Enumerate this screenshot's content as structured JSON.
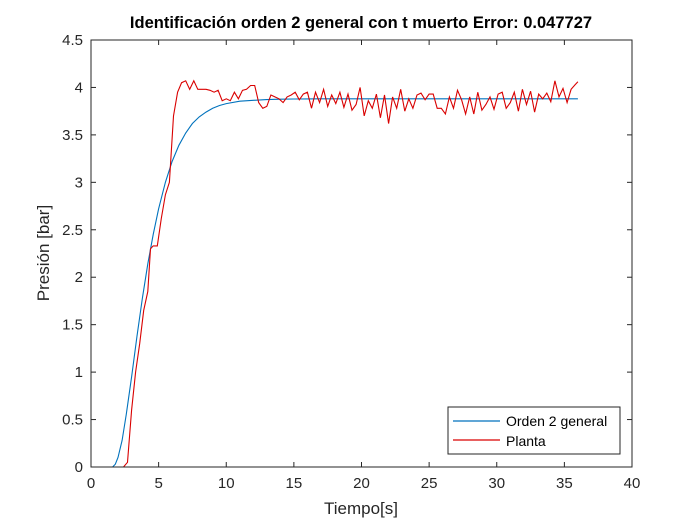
{
  "chart_data": {
    "type": "line",
    "title": "Identificación orden 2 general con t muerto Error: 0.047727",
    "xlabel": "Tiempo[s]",
    "ylabel": "Presión [bar]",
    "xlim": [
      0,
      40
    ],
    "ylim": [
      0,
      4.5
    ],
    "xticks": [
      0,
      5,
      10,
      15,
      20,
      25,
      30,
      35,
      40
    ],
    "xtick_labels": [
      "0",
      "5",
      "10",
      "15",
      "20",
      "25",
      "30",
      "35",
      "40"
    ],
    "yticks": [
      0,
      0.5,
      1,
      1.5,
      2,
      2.5,
      3,
      3.5,
      4,
      4.5
    ],
    "ytick_labels": [
      "0",
      "0.5",
      "1",
      "1.5",
      "2",
      "2.5",
      "3",
      "3.5",
      "4",
      "4.5"
    ],
    "grid": false,
    "legend_position": "bottom-right",
    "series": [
      {
        "name": "Orden 2 general",
        "color": "#0072BD",
        "x": [
          0,
          1.6,
          1.8,
          2,
          2.3,
          2.6,
          3,
          3.4,
          3.8,
          4.2,
          4.6,
          5,
          5.5,
          6,
          6.5,
          7,
          7.5,
          8,
          8.5,
          9,
          9.5,
          10,
          11,
          12,
          13,
          14,
          15,
          16,
          17,
          18,
          20,
          22,
          25,
          28,
          30,
          33,
          36
        ],
        "y": [
          0,
          0,
          0.03,
          0.1,
          0.28,
          0.55,
          0.95,
          1.38,
          1.78,
          2.14,
          2.45,
          2.72,
          3.0,
          3.22,
          3.39,
          3.52,
          3.62,
          3.69,
          3.74,
          3.78,
          3.81,
          3.83,
          3.855,
          3.865,
          3.872,
          3.876,
          3.878,
          3.879,
          3.88,
          3.88,
          3.88,
          3.88,
          3.88,
          3.88,
          3.88,
          3.88,
          3.88
        ]
      },
      {
        "name": "Planta",
        "color": "#D90000",
        "x": [
          0,
          1,
          2,
          2.4,
          2.7,
          3.0,
          3.3,
          3.6,
          3.9,
          4.2,
          4.4,
          4.6,
          4.9,
          5.2,
          5.5,
          5.8,
          6.1,
          6.4,
          6.7,
          7.0,
          7.3,
          7.6,
          7.9,
          8.2,
          8.5,
          8.8,
          9.1,
          9.4,
          9.7,
          10.0,
          10.3,
          10.6,
          10.9,
          11.2,
          11.5,
          11.8,
          12.1,
          12.4,
          12.7,
          13.0,
          13.3,
          13.6,
          13.9,
          14.2,
          14.5,
          14.8,
          15.1,
          15.4,
          15.7,
          16.0,
          16.3,
          16.6,
          16.9,
          17.2,
          17.5,
          17.8,
          18.1,
          18.4,
          18.7,
          19.0,
          19.3,
          19.6,
          19.9,
          20.2,
          20.5,
          20.8,
          21.1,
          21.4,
          21.7,
          22.0,
          22.3,
          22.6,
          22.9,
          23.2,
          23.5,
          23.8,
          24.1,
          24.4,
          24.7,
          25.0,
          25.3,
          25.6,
          25.9,
          26.2,
          26.5,
          26.8,
          27.1,
          27.4,
          27.7,
          28.0,
          28.3,
          28.6,
          28.9,
          29.2,
          29.5,
          29.8,
          30.1,
          30.4,
          30.7,
          31.0,
          31.3,
          31.6,
          31.9,
          32.2,
          32.5,
          32.8,
          33.1,
          33.4,
          33.7,
          34.0,
          34.3,
          34.6,
          34.9,
          35.2,
          35.5,
          35.8,
          36.0
        ],
        "y": [
          0,
          0,
          0,
          0.0,
          0.05,
          0.6,
          1.0,
          1.3,
          1.65,
          1.85,
          2.3,
          2.33,
          2.33,
          2.62,
          2.87,
          3.0,
          3.7,
          3.95,
          4.05,
          4.07,
          3.98,
          4.07,
          3.98,
          3.98,
          3.98,
          3.97,
          3.95,
          3.97,
          3.86,
          3.88,
          3.86,
          3.95,
          3.88,
          3.97,
          3.98,
          4.02,
          4.02,
          3.84,
          3.78,
          3.8,
          3.92,
          3.9,
          3.88,
          3.84,
          3.9,
          3.92,
          3.95,
          3.87,
          3.93,
          3.95,
          3.78,
          3.95,
          3.84,
          3.98,
          3.8,
          3.92,
          3.83,
          3.95,
          3.79,
          3.93,
          3.76,
          3.82,
          4.0,
          3.7,
          3.86,
          3.78,
          3.93,
          3.68,
          3.92,
          3.62,
          3.9,
          3.78,
          3.98,
          3.75,
          3.88,
          3.78,
          3.92,
          3.94,
          3.87,
          3.93,
          3.93,
          3.78,
          3.78,
          3.72,
          3.9,
          3.78,
          3.97,
          3.87,
          3.72,
          3.9,
          3.72,
          3.95,
          3.76,
          3.82,
          3.9,
          3.77,
          3.93,
          3.95,
          3.78,
          3.84,
          3.95,
          3.75,
          3.98,
          3.82,
          3.96,
          3.74,
          3.93,
          3.88,
          3.94,
          3.85,
          4.07,
          3.9,
          3.99,
          3.84,
          3.98,
          4.03,
          4.06
        ]
      }
    ]
  }
}
